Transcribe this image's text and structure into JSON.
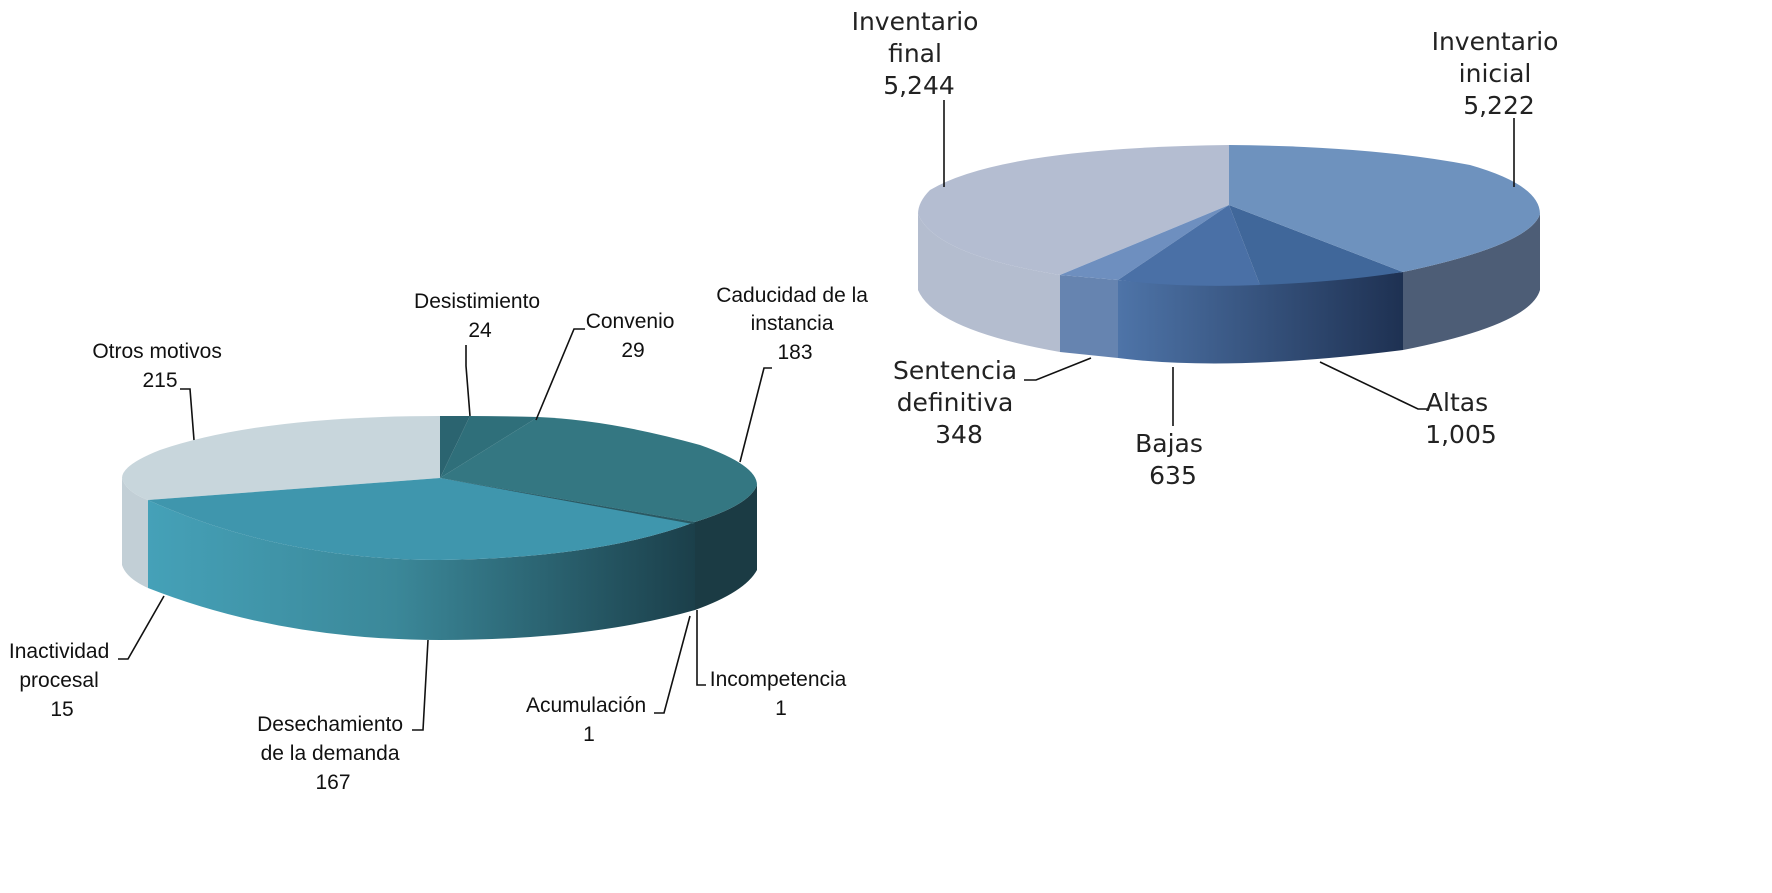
{
  "colors": {
    "left_top": [
      "#347782",
      "#3c8da2",
      "#3a7e8c",
      "#3f96ad",
      "#c8d6dc"
    ],
    "right_top": [
      "#b4bdd1",
      "#6e92be",
      "#40679a",
      "#4e72a8"
    ]
  },
  "chart_data": [
    {
      "type": "pie",
      "slices": [
        {
          "label": "Desistimiento",
          "value": 24,
          "value_text": "24"
        },
        {
          "label": "Convenio",
          "value": 29,
          "value_text": "29"
        },
        {
          "label": "Caducidad de la instancia",
          "value": 183,
          "value_text": "183"
        },
        {
          "label": "Incompetencia",
          "value": 1,
          "value_text": "1"
        },
        {
          "label": "Acumulación",
          "value": 1,
          "value_text": "1"
        },
        {
          "label": "Desechamiento de la demanda",
          "value": 167,
          "value_text": "167"
        },
        {
          "label": "Inactividad procesal",
          "value": 15,
          "value_text": "15"
        },
        {
          "label": "Otros motivos",
          "value": 215,
          "value_text": "215"
        }
      ]
    },
    {
      "type": "pie",
      "slices": [
        {
          "label": "Inventario inicial",
          "value": 5222,
          "value_text": "5,222"
        },
        {
          "label": "Altas",
          "value": 1005,
          "value_text": "1,005"
        },
        {
          "label": "Bajas",
          "value": 635,
          "value_text": "635"
        },
        {
          "label": "Sentencia definitiva",
          "value": 348,
          "value_text": "348"
        },
        {
          "label": "Inventario final",
          "value": 5244,
          "value_text": "5,244"
        }
      ]
    }
  ]
}
